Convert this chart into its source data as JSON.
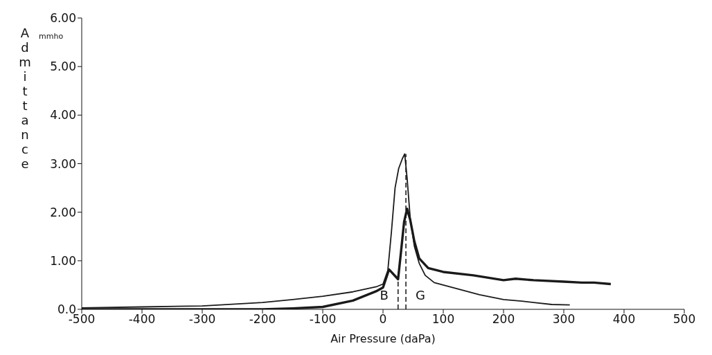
{
  "chart_data": {
    "type": "line",
    "xlabel": "Air Pressure (daPa)",
    "ylabel": "Admittance",
    "annotations": [
      "mmho",
      {
        "text": "B",
        "x": 25,
        "y": 0.62
      },
      {
        "text": "G",
        "x": 38,
        "y": 3.2
      }
    ],
    "series": [
      {
        "color": "#1a1a1a",
        "x": [
          -500,
          -400,
          -300,
          -200,
          -150,
          -100,
          -50,
          -10,
          0,
          8,
          14,
          20,
          26,
          32,
          36,
          40,
          45,
          52,
          60,
          70,
          85,
          100,
          130,
          160,
          200,
          230,
          250,
          280,
          310
        ],
        "values": [
          0.03,
          0.05,
          0.07,
          0.14,
          0.2,
          0.27,
          0.36,
          0.47,
          0.52,
          0.8,
          1.6,
          2.5,
          2.9,
          3.1,
          3.2,
          2.7,
          1.9,
          1.3,
          0.95,
          0.7,
          0.55,
          0.5,
          0.4,
          0.3,
          0.2,
          0.17,
          0.14,
          0.1,
          0.09
        ]
      },
      {
        "color": "#1a1a1a",
        "x": [
          -500,
          -400,
          -300,
          -200,
          -150,
          -100,
          -50,
          -10,
          0,
          10,
          25,
          30,
          35,
          40,
          45,
          52,
          60,
          75,
          100,
          150,
          200,
          220,
          250,
          300,
          330,
          350,
          378
        ],
        "values": [
          0.0,
          0.0,
          0.0,
          0.0,
          0.02,
          0.05,
          0.18,
          0.38,
          0.45,
          0.82,
          0.62,
          1.2,
          1.8,
          2.07,
          1.85,
          1.4,
          1.05,
          0.85,
          0.77,
          0.7,
          0.6,
          0.63,
          0.6,
          0.57,
          0.55,
          0.55,
          0.52
        ]
      }
    ],
    "xlim": [
      -500,
      500
    ],
    "xticks": [
      -500,
      -400,
      -300,
      -200,
      -100,
      0,
      100,
      200,
      300,
      400,
      500
    ],
    "ylim": [
      0,
      6
    ],
    "yticks": [
      {
        "value": 0,
        "label": "0.0"
      },
      {
        "value": 1,
        "label": "1.00"
      },
      {
        "value": 2,
        "label": "2.00"
      },
      {
        "value": 3,
        "label": "3.00"
      },
      {
        "value": 4,
        "label": "4.00"
      },
      {
        "value": 5,
        "label": "5.00"
      },
      {
        "value": 6,
        "label": "6.00"
      }
    ],
    "grid": false,
    "legend": false,
    "marker": "none",
    "line_style": "solid"
  }
}
